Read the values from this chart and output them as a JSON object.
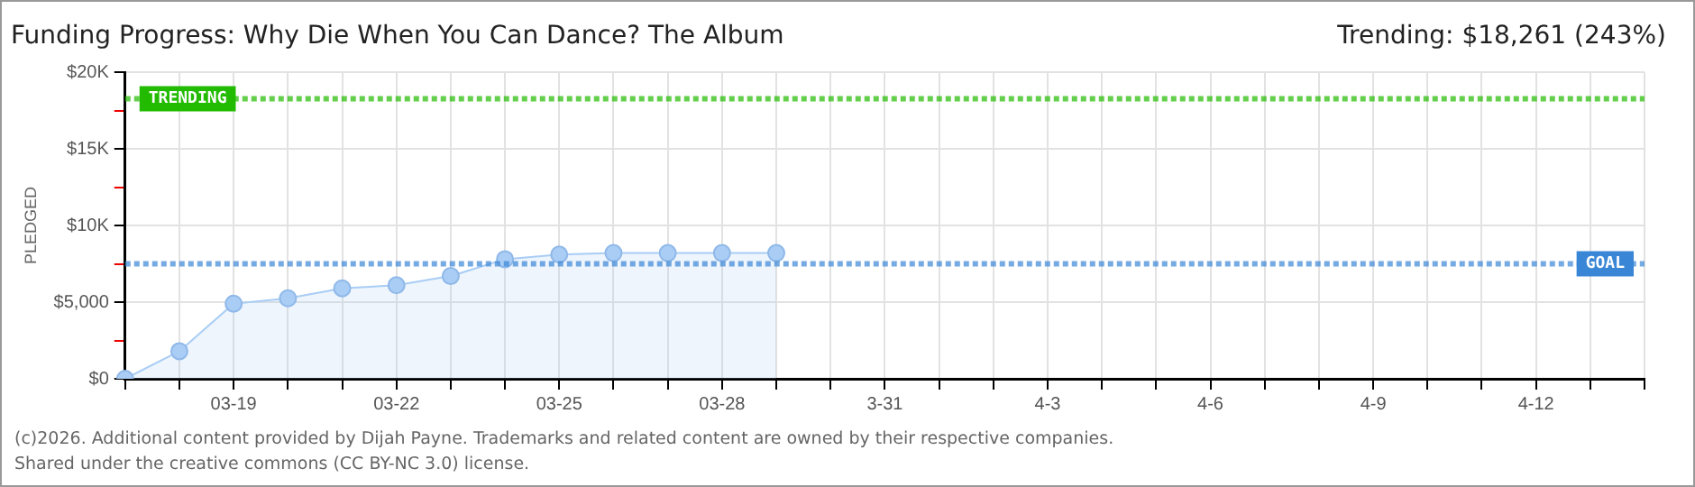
{
  "chart_data": {
    "type": "area",
    "title": "Funding Progress: Why Die When You Can Dance? The Album",
    "subtitle": "Trending: $18,261 (243%)",
    "ylabel": "PLEDGED",
    "categories": [
      null,
      null,
      "03-19",
      null,
      null,
      "03-22",
      null,
      null,
      "03-25",
      null,
      null,
      "03-28",
      null,
      null,
      "3-31",
      null,
      null,
      "4-3",
      null,
      null,
      "4-6",
      null,
      null,
      "4-9",
      null,
      null,
      "4-12",
      null,
      null
    ],
    "series": [
      {
        "color": "#a9cdf5",
        "values": [
          0,
          1800,
          4900,
          5250,
          5900,
          6100,
          6700,
          7800,
          8100,
          8200,
          8200,
          8200,
          8200,
          null,
          null,
          null,
          null,
          null,
          null,
          null,
          null,
          null,
          null,
          null,
          null,
          null,
          null,
          null,
          null
        ]
      }
    ],
    "ylim": [
      0,
      20000
    ],
    "yticks": [
      {
        "value": 0,
        "label": "$0"
      },
      {
        "value": 2500,
        "label": null
      },
      {
        "value": 5000,
        "label": "$5,000"
      },
      {
        "value": 7500,
        "label": null
      },
      {
        "value": 10000,
        "label": "$10K"
      },
      {
        "value": 12500,
        "label": null
      },
      {
        "value": 15000,
        "label": "$15K"
      },
      {
        "value": 17500,
        "label": null
      },
      {
        "value": 20000,
        "label": "$20K"
      }
    ],
    "ref_lines": [
      {
        "axis": "y",
        "value": 18261,
        "label": "TRENDING",
        "color": "#22bb00",
        "line_style": "dotted"
      },
      {
        "axis": "y",
        "value": 7500,
        "label": "GOAL",
        "color": "#3a86d6",
        "line_style": "dotted"
      }
    ],
    "grid": true,
    "legend": false,
    "marker": "circle",
    "annotations": [
      "(c)2026. Additional content provided by Dijah Payne. Trademarks and related content are owned by their respective companies.",
      "Shared under the creative commons (CC BY-NC 3.0) license."
    ]
  }
}
